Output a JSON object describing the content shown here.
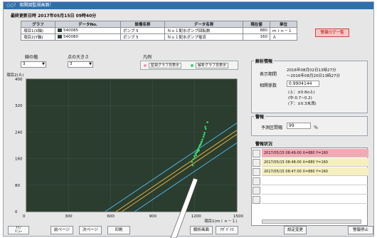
{
  "window": {
    "title": "○○！ 相関図監視画面！"
  },
  "update": {
    "label": "最終更新日時 2017年05月15日 09時40分"
  },
  "table": {
    "headers": [
      "グラフ",
      "データNo.",
      "設備名称",
      "データ名称",
      "現在値",
      "単位"
    ],
    "rows": [
      {
        "graph": "項目1(X軸)",
        "no": "540085",
        "equip": "ポンプ 5",
        "name": "Ｎｏ１配水ポンプ回転数",
        "value": "880",
        "unit": "ｍｉｎ－１"
      },
      {
        "graph": "項目2(Y軸)",
        "no": "540080",
        "equip": "ポンプ 5",
        "name": "Ｎｏ１配水ポンプ電流",
        "value": "160",
        "unit": "Ａ"
      }
    ]
  },
  "alarm_button": "警報ログ一覧",
  "controls": {
    "line_width_label": "線の幅",
    "line_width_value": "3",
    "dot_size_label": "点の大きさ",
    "dot_size_value": "3",
    "legend_label": "凡例",
    "legend_monitor": "監視グラフ非表示",
    "legend_analysis": "解析グラフ非表示"
  },
  "chart_data": {
    "type": "scatter",
    "ylabel": "項目2(Ａ)",
    "xlabel": "項目1(ｍｉｎ－１)",
    "xlim": [
      0,
      1500
    ],
    "ylim": [
      0,
      400
    ],
    "xticks": [
      "0",
      "300",
      "600",
      "900",
      "1200",
      "1500"
    ],
    "yticks": [
      "0",
      "80",
      "160",
      "240",
      "320",
      "400"
    ],
    "points": [
      [
        1180,
        150
      ],
      [
        1190,
        158
      ],
      [
        1200,
        162
      ],
      [
        1210,
        170
      ],
      [
        1205,
        175
      ],
      [
        1215,
        180
      ],
      [
        1220,
        186
      ],
      [
        1225,
        190
      ],
      [
        1232,
        196
      ],
      [
        1240,
        202
      ],
      [
        1248,
        210
      ],
      [
        1255,
        218
      ],
      [
        1262,
        226
      ],
      [
        1270,
        238
      ],
      [
        1278,
        250
      ],
      [
        1230,
        185
      ],
      [
        1198,
        168
      ],
      [
        1212,
        178
      ],
      [
        1244,
        205
      ],
      [
        1266,
        232
      ],
      [
        1250,
        212
      ],
      [
        1236,
        200
      ],
      [
        1222,
        182
      ],
      [
        1275,
        256
      ],
      [
        1185,
        140
      ],
      [
        1290,
        270
      ]
    ],
    "bands": {
      "upper_offset": 30,
      "lower_offset": -30
    }
  },
  "analysis": {
    "title": "解析情報",
    "period_label": "表示期間",
    "period_value": "2016年08月02日13時27分\n～2016年08月20日13時27分",
    "coef_label": "相関係数",
    "coef_value": "0.9904144",
    "formula_top": "(上：±0.8σ上)",
    "formula_mid": "(中:0.7~0.2)",
    "formula_bot": "(下：±0.3未満)"
  },
  "alarm": {
    "title": "警報",
    "threshold_label": "予測区間幅",
    "threshold_value": "99",
    "threshold_unit": "％"
  },
  "alarm_status": {
    "title": "警報状況",
    "items": [
      {
        "text": "2017/05/15 08:49:00 X=880 Y=160",
        "color": "#f4a9b2"
      },
      {
        "text": "2017/05/15 08:48:00 X=880 Y=160",
        "color": "#f6f0c0"
      },
      {
        "text": "2017/05/15 08:47:00 X=880 Y=160",
        "color": "#f6f0c0"
      }
    ]
  },
  "buttons": {
    "menu": "ﾒｲﾝ\nﾒﾆｭｰ",
    "prev": "前ページ",
    "next": "次ページ",
    "print": "印刷",
    "analysis": "解析画面",
    "guidance": "ｱﾀﾞﾊﾞｲｽ",
    "settings": "設定変更",
    "alarm_stop": "警報停止"
  },
  "colors": {
    "plot_bg": "#2a3d2f",
    "dots": "#3cd46a",
    "cyan_line": "#4fb6e8",
    "orange_line": "#e0b040"
  }
}
